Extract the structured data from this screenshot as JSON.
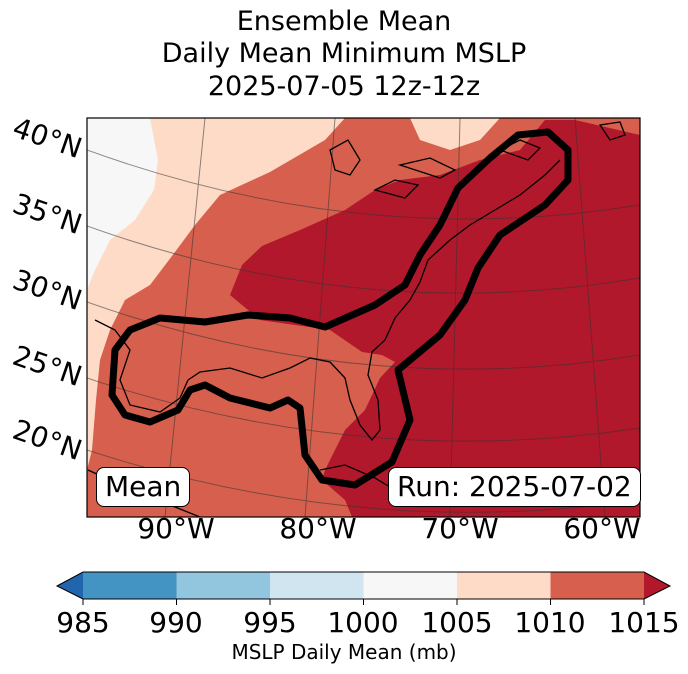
{
  "title": {
    "line1": "Ensemble Mean",
    "line2": "Daily Mean Minimum MSLP",
    "line3": "2025-07-05 12z-12z"
  },
  "map": {
    "lat_labels": [
      "40°N",
      "35°N",
      "30°N",
      "25°N",
      "20°N"
    ],
    "lon_labels": [
      "90°W",
      "80°W",
      "70°W",
      "60°W"
    ],
    "mean_label": "Mean",
    "run_label": "Run: 2025-07-02"
  },
  "colorbar": {
    "ticks": [
      "985",
      "990",
      "995",
      "1000",
      "1005",
      "1010",
      "1015"
    ],
    "label": "MSLP Daily Mean (mb)",
    "colors": {
      "below": "#2166ac",
      "c985_990": "#4393c3",
      "c990_995": "#92c5de",
      "c995_1000": "#d1e5f0",
      "c1000_1005": "#f7f7f7",
      "c1005_1010": "#fddbc7",
      "c1010_1015": "#d6604d",
      "above": "#b2182b"
    }
  }
}
